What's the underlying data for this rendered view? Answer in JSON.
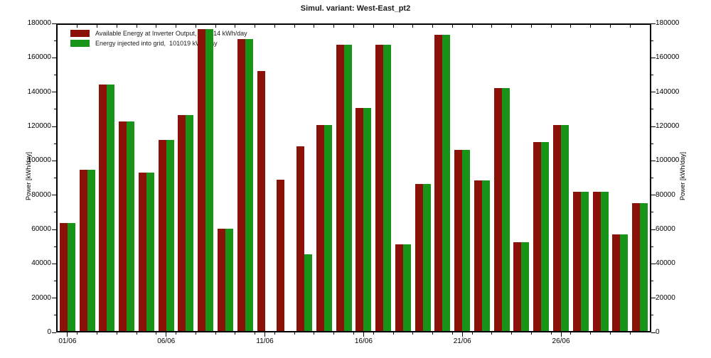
{
  "chart_data": {
    "type": "bar",
    "title": "Simul. variant: West-East_pt2",
    "xlabel": "",
    "ylabel": "Power [kWh/day]",
    "ylabel_right": "Power [kWh/day]",
    "ylim": [
      0,
      180000
    ],
    "ytick_step": 20000,
    "yminor_step": 10000,
    "ytick_labels": [
      "0",
      "20000",
      "40000",
      "60000",
      "80000",
      "100000",
      "120000",
      "140000",
      "160000",
      "180000"
    ],
    "grid": false,
    "legend_position": "top-left-inside",
    "categories": [
      "01/06",
      "02/06",
      "03/06",
      "04/06",
      "05/06",
      "06/06",
      "07/06",
      "08/06",
      "09/06",
      "10/06",
      "11/06",
      "12/06",
      "13/06",
      "14/06",
      "15/06",
      "16/06",
      "17/06",
      "18/06",
      "19/06",
      "20/06",
      "21/06",
      "22/06",
      "23/06",
      "24/06",
      "25/06",
      "26/06",
      "27/06",
      "28/06",
      "29/06",
      "30/06"
    ],
    "xtick_labels": [
      "01/06",
      "06/06",
      "11/06",
      "16/06",
      "21/06",
      "26/06"
    ],
    "xtick_label_day_indices": [
      0,
      5,
      10,
      15,
      20,
      25
    ],
    "series": [
      {
        "name": "Available Energy at Inverter Output",
        "legend": "Available Energy at Inverter Output,  111214 kWh/day",
        "average_kwh_day": 111214,
        "color": "#8B1208",
        "values": [
          63500,
          95000,
          145000,
          123000,
          93000,
          112500,
          127000,
          177500,
          60000,
          171500,
          153000,
          89000,
          108500,
          121000,
          168500,
          131000,
          168500,
          51000,
          86500,
          174000,
          106500,
          88500,
          143000,
          52000,
          111000,
          121000,
          82000,
          82000,
          57000,
          75000
        ]
      },
      {
        "name": "Energy injected into grid",
        "legend": "Energy injected into grid,  101019 kWh/day",
        "average_kwh_day": 101019,
        "color": "#189418",
        "values": [
          63500,
          95000,
          145000,
          123000,
          93000,
          112500,
          127000,
          177500,
          60000,
          171500,
          0,
          0,
          45000,
          121000,
          168500,
          131000,
          168500,
          51000,
          86500,
          174000,
          106500,
          88500,
          143000,
          52000,
          111000,
          121000,
          82000,
          82000,
          57000,
          75000
        ]
      }
    ]
  }
}
